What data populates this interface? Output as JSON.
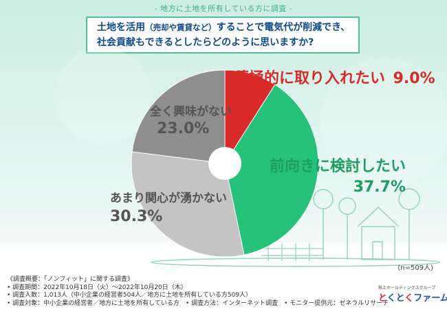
{
  "header": {
    "title": "- 地方に土地を所有している方に調査 -"
  },
  "question": {
    "line1_a": "土地を活用",
    "line1_b": "（売却や賃貸など）",
    "line1_c": "することで電気代が削減でき、",
    "line2": "社会貢献もできるとしたらどのように思いますか?"
  },
  "chart_data": {
    "type": "pie",
    "title": "",
    "donut_hole": true,
    "slices": [
      {
        "label": "積極的に取り入れたい",
        "value": 9.0,
        "display": "9.0%",
        "color": "#d92a2a",
        "text_color": "#d92a2a"
      },
      {
        "label": "前向きに検討したい",
        "value": 37.7,
        "display": "37.7%",
        "color": "#27c27a",
        "text_color": "#1d9e60"
      },
      {
        "label": "あまり関心が湧かない",
        "value": 30.3,
        "display": "30.3%",
        "color": "#c4c4c4",
        "text_color": "#555555"
      },
      {
        "label": "全く興味がない",
        "value": 23.0,
        "display": "23.0%",
        "color": "#8e8e8e",
        "text_color": "#555555"
      }
    ],
    "sample_note": "(n=509人)"
  },
  "footer": {
    "lines": [
      "《調査概要：「ノンフィット」に関する調査》",
      "• 調査期間：2022年10月18日（火）～2022年10月20日（木）",
      "• 調査人数：1,013人（中小企業の経営者504人／地方に土地を所有している方509人）",
      "• 調査対象：中小企業の経営者／地方に土地を所有している方　• 調査方法：インターネット調査　• モニター提供元：ゼネラルリサーチ"
    ]
  },
  "logo": {
    "sub": "株上ホールディングスグループ",
    "brand_a": "と",
    "brand_b": "くと",
    "brand_c": "く",
    "brand_d": "ファーム"
  }
}
